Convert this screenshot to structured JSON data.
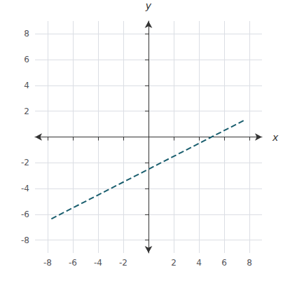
{
  "chart_data": {
    "type": "line",
    "x": [
      -7.7,
      7.7
    ],
    "values": [
      -6.35,
      1.35
    ],
    "color": "#1a5e6e",
    "line_style": "dashed",
    "xlabel": "x",
    "ylabel": "y",
    "xlim": [
      -9,
      9
    ],
    "ylim": [
      -9,
      9
    ],
    "xticks": [
      -8,
      -6,
      -4,
      -2,
      2,
      4,
      6,
      8
    ],
    "yticks": [
      -8,
      -6,
      -4,
      -2,
      2,
      4,
      6,
      8
    ],
    "grid": true
  }
}
